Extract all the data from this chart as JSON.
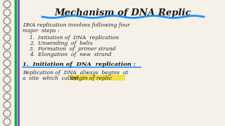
{
  "bg_color": "#f5f0e8",
  "title": "Mechanism of DNA Replic",
  "title_color": "#1a1a1a",
  "underline_color": "#1e90ff",
  "spiral_color": "#888888",
  "line1": "DNA replication involves following four",
  "line2": "major  steps :",
  "steps": [
    "1.  Initiation of  DNA  replication",
    "2.  Unwinding  of  helix",
    "3.  Formation  of  primer strand",
    "4.  Elongation  of  new  strand"
  ],
  "subheading": "1.  Initiation of  DNA  replication :",
  "subheading_color": "#1a1a1a",
  "subtext1": "Replication of  DNA  always  begins  at",
  "subtext2": "a  site  which  called  Origin of replic",
  "highlight_color": "#f0e040",
  "text_color": "#1a1a1a",
  "handwriting_color": "#2a2a2a",
  "green_line_color": "#00aa44",
  "purple_line_color": "#8844aa"
}
